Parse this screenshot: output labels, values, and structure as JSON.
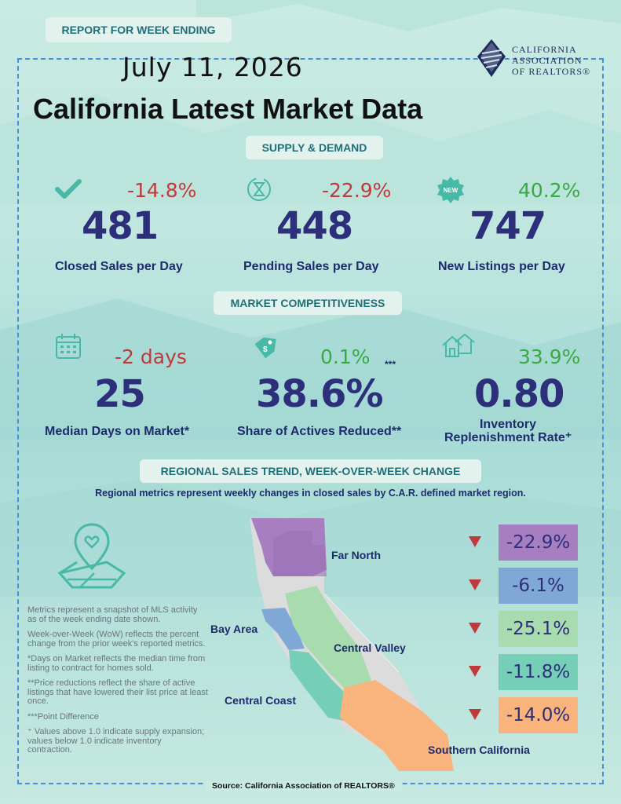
{
  "header": {
    "report_label": "REPORT FOR WEEK ENDING",
    "date": "July 11, 2026",
    "title": "California Latest Market Data"
  },
  "logo": {
    "line1": "CALIFORNIA",
    "line2": "ASSOCIATION",
    "line3": "OF REALTORS®"
  },
  "supply_demand": {
    "heading": "SUPPLY & DEMAND",
    "closed": {
      "change": "-14.8%",
      "value": "481",
      "label": "Closed Sales per Day",
      "icon": "checkmark-icon"
    },
    "pending": {
      "change": "-22.9%",
      "value": "448",
      "label": "Pending Sales per Day",
      "icon": "hourglass-icon"
    },
    "new_listings": {
      "change": "40.2%",
      "value": "747",
      "label": "New Listings per Day",
      "icon": "new-badge-icon",
      "badge": "NEW"
    }
  },
  "competitiveness": {
    "heading": "MARKET COMPETITIVENESS",
    "dom": {
      "change": "-2 days",
      "value": "25",
      "label": "Median Days on Market*",
      "icon": "calendar-icon"
    },
    "reduced": {
      "change": "0.1%",
      "marker": "***",
      "value": "38.6%",
      "label": "Share of Actives Reduced**",
      "icon": "price-tag-icon"
    },
    "inventory": {
      "change": "33.9%",
      "value": "0.80",
      "label_line1": "Inventory",
      "label_line2": "Replenishment Rate⁺",
      "icon": "houses-icon"
    }
  },
  "regional": {
    "heading": "REGIONAL SALES TREND, WEEK-OVER-WEEK CHANGE",
    "subheading": "Regional metrics represent weekly changes in closed sales by C.A.R. defined market region.",
    "labels": {
      "far_north": "Far North",
      "bay_area": "Bay Area",
      "central_valley": "Central Valley",
      "central_coast": "Central Coast",
      "southern_california": "Southern California"
    },
    "changes": [
      {
        "region": "Far North",
        "value": "-22.9%",
        "color": "#a77fc0"
      },
      {
        "region": "Bay Area",
        "value": "-6.1%",
        "color": "#7fa8d6"
      },
      {
        "region": "Central Valley",
        "value": "-25.1%",
        "color": "#a8dbae"
      },
      {
        "region": "Central Coast",
        "value": "-11.8%",
        "color": "#74cfb6"
      },
      {
        "region": "Southern California",
        "value": "-14.0%",
        "color": "#f8b47c"
      }
    ]
  },
  "notes": [
    "Metrics represent a snapshot of MLS activity as of the week ending date shown.",
    "Week-over-Week (WoW) reflects the percent change from the prior week's reported metrics.",
    "*Days on Market reflects the median time from listing to contract for homes sold.",
    "**Price reductions reflect the share of active listings that have lowered their list price at least once.",
    "***Point Difference",
    "⁺ Values above 1.0 indicate supply expansion; values below 1.0 indicate inventory contraction."
  ],
  "source": "Source: California Association of REALTORS®",
  "colors": {
    "navy": "#2d2f7a",
    "negative": "#c0393b",
    "positive": "#3aa944",
    "teal": "#1f6f78"
  }
}
